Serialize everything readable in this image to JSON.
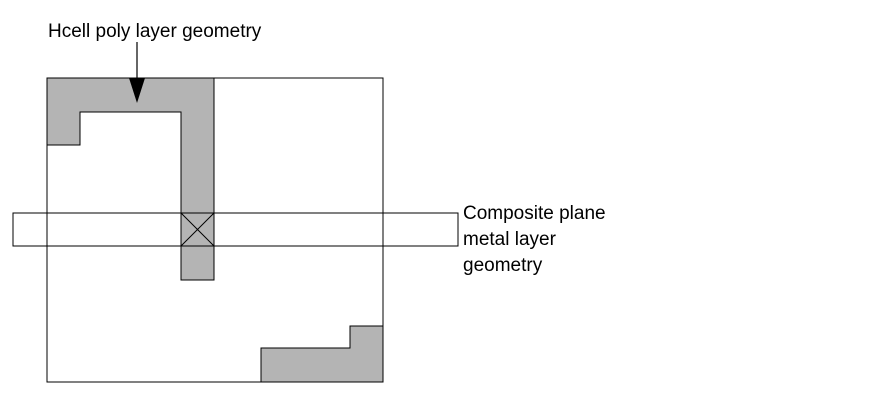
{
  "labels": {
    "hcell_poly": "Hcell poly layer geometry",
    "composite_metal": [
      "Composite plane",
      "metal layer",
      "geometry"
    ]
  },
  "colors": {
    "poly_fill": "#b4b4b4",
    "stroke": "#000000",
    "background": "#ffffff"
  }
}
